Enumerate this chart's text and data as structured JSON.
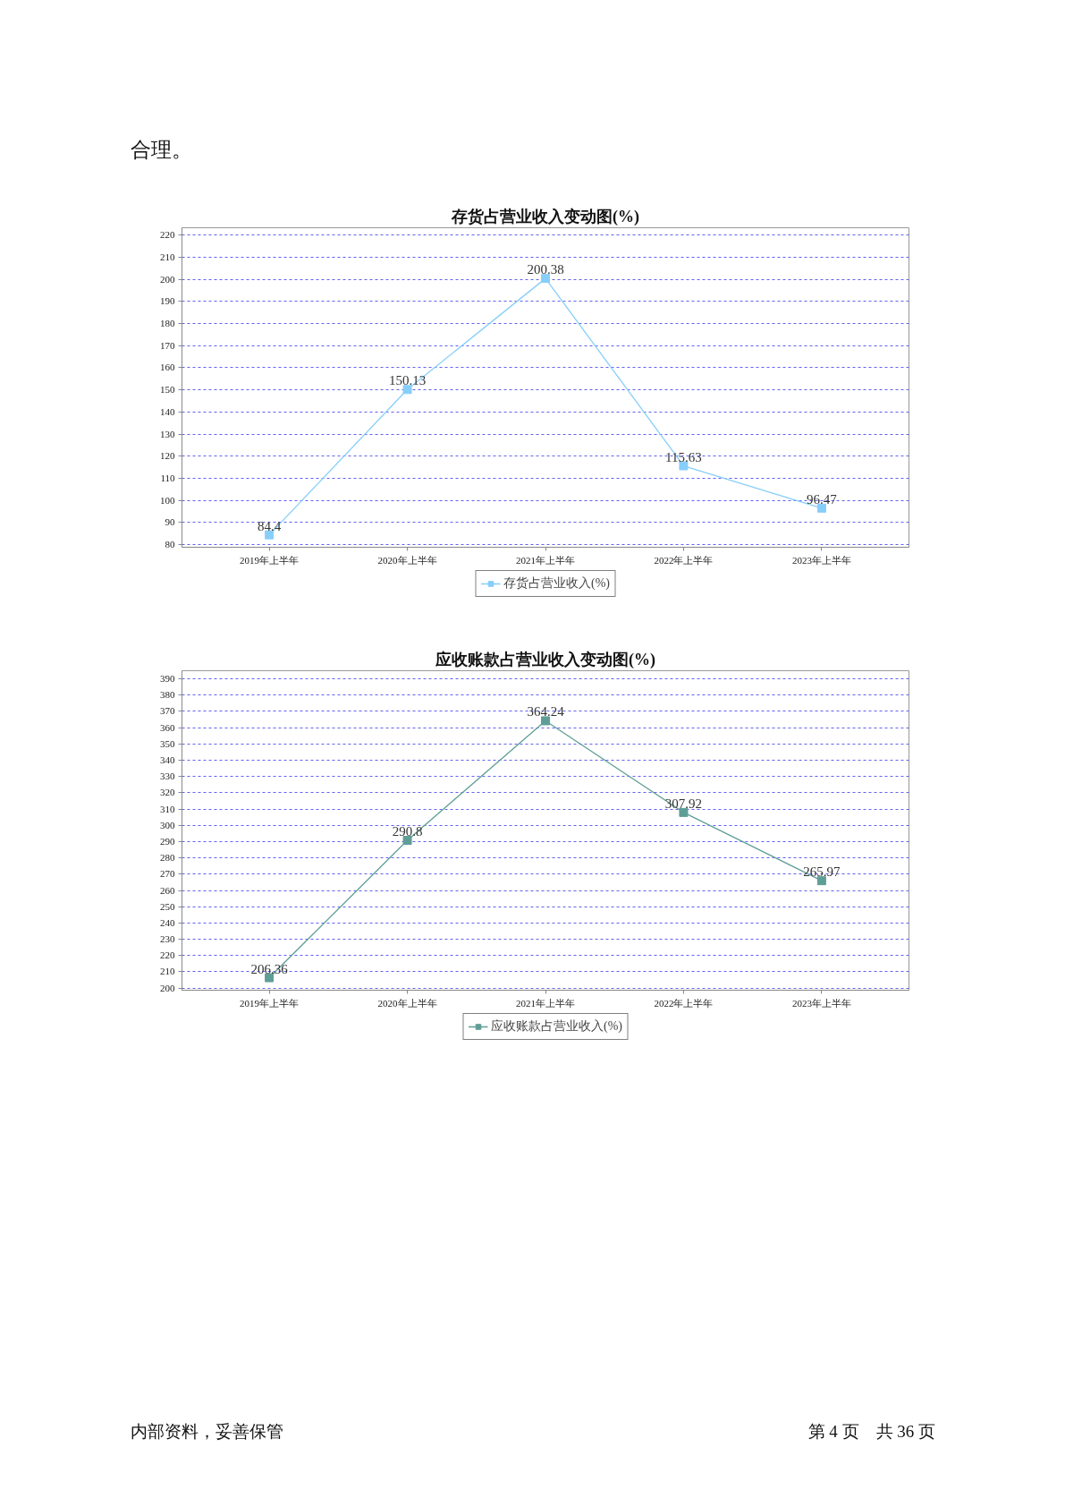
{
  "chart_data": [
    {
      "type": "line",
      "title": "存货占营业收入变动图(%)",
      "categories": [
        "2019年上半年",
        "2020年上半年",
        "2021年上半年",
        "2022年上半年",
        "2023年上半年"
      ],
      "series": [
        {
          "name": "存货占营业收入(%)",
          "color": "#87cefa",
          "values": [
            84.4,
            150.13,
            200.38,
            115.63,
            96.47
          ]
        }
      ],
      "ylim": [
        78.8,
        223.3
      ],
      "yticks": [
        80,
        90,
        100,
        110,
        120,
        130,
        140,
        150,
        160,
        170,
        180,
        190,
        200,
        210,
        220
      ],
      "grid": "y",
      "legend": "bottom",
      "marker": "square",
      "line_style": "solid",
      "data_labels": true,
      "annotations": [
        "合理。"
      ]
    },
    {
      "type": "line",
      "title": "应收账款占营业收入变动图(%)",
      "categories": [
        "2019年上半年",
        "2020年上半年",
        "2021年上半年",
        "2022年上半年",
        "2023年上半年"
      ],
      "series": [
        {
          "name": "应收账款占营业收入(%)",
          "color": "#5f9e96",
          "values": [
            206.36,
            290.8,
            364.24,
            307.92,
            265.97
          ]
        }
      ],
      "ylim": [
        198.7,
        395.0
      ],
      "yticks": [
        200,
        210,
        220,
        230,
        240,
        250,
        260,
        270,
        280,
        290,
        300,
        310,
        320,
        330,
        340,
        350,
        360,
        370,
        380,
        390
      ],
      "grid": "y",
      "legend": "bottom",
      "marker": "square",
      "line_style": "solid",
      "data_labels": true,
      "annotations": [
        "内部资料，妥善保管",
        "第 4 页　共 36 页"
      ]
    }
  ]
}
